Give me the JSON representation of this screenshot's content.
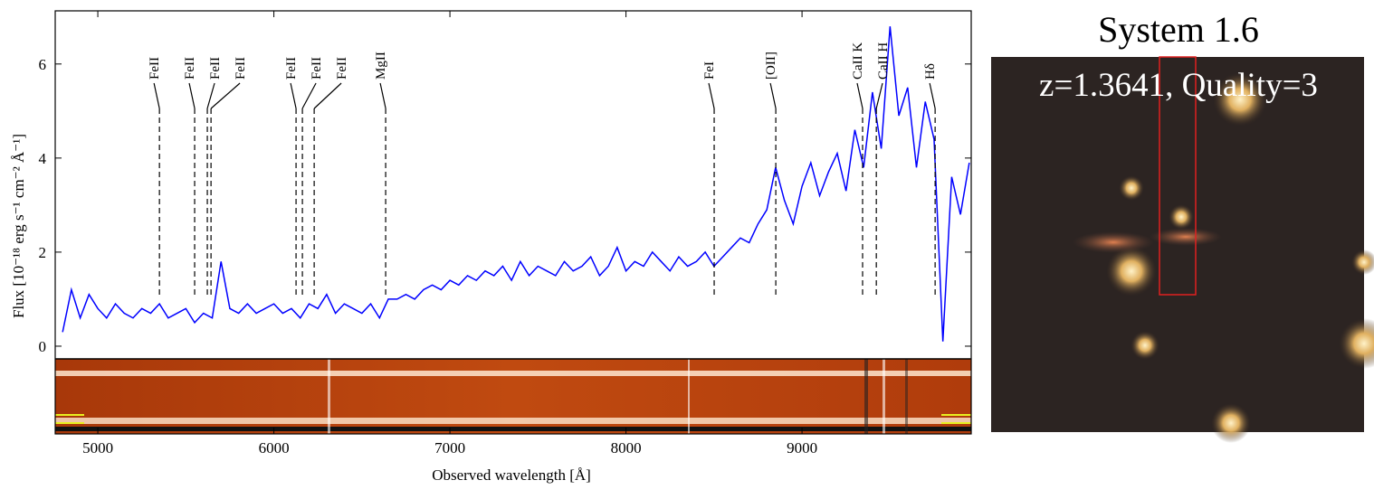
{
  "chart_data": {
    "type": "line",
    "x_label": "Observed wavelength [Å]",
    "y_label": "Flux [10⁻¹⁸ erg s⁻¹ cm⁻² Å⁻¹]",
    "color": "#0000ff",
    "xlim": [
      4758,
      9961
    ],
    "xticks": [
      5000,
      6000,
      7000,
      8000,
      9000
    ],
    "ylim": [
      -0.27,
      7.13
    ],
    "yticks": [
      0,
      2,
      4,
      6
    ],
    "x": [
      4800,
      4850,
      4900,
      4950,
      5000,
      5050,
      5100,
      5150,
      5200,
      5250,
      5300,
      5350,
      5400,
      5450,
      5500,
      5550,
      5600,
      5650,
      5700,
      5750,
      5800,
      5850,
      5900,
      5950,
      6000,
      6050,
      6100,
      6150,
      6200,
      6250,
      6300,
      6350,
      6400,
      6450,
      6500,
      6550,
      6600,
      6650,
      6700,
      6750,
      6800,
      6850,
      6900,
      6950,
      7000,
      7050,
      7100,
      7150,
      7200,
      7250,
      7300,
      7350,
      7400,
      7450,
      7500,
      7550,
      7600,
      7650,
      7700,
      7750,
      7800,
      7850,
      7900,
      7950,
      8000,
      8050,
      8100,
      8150,
      8200,
      8250,
      8300,
      8350,
      8400,
      8450,
      8500,
      8550,
      8600,
      8650,
      8700,
      8750,
      8800,
      8850,
      8900,
      8950,
      9000,
      9050,
      9100,
      9150,
      9200,
      9250,
      9300,
      9350,
      9400,
      9450,
      9500,
      9550,
      9600,
      9650,
      9700,
      9750,
      9800,
      9850,
      9900,
      9950
    ],
    "values": [
      0.3,
      1.2,
      0.6,
      1.1,
      0.8,
      0.6,
      0.9,
      0.7,
      0.6,
      0.8,
      0.7,
      0.9,
      0.6,
      0.7,
      0.8,
      0.5,
      0.7,
      0.6,
      1.8,
      0.8,
      0.7,
      0.9,
      0.7,
      0.8,
      0.9,
      0.7,
      0.8,
      0.6,
      0.9,
      0.8,
      1.1,
      0.7,
      0.9,
      0.8,
      0.7,
      0.9,
      0.6,
      1.0,
      1.0,
      1.1,
      1.0,
      1.2,
      1.3,
      1.2,
      1.4,
      1.3,
      1.5,
      1.4,
      1.6,
      1.5,
      1.7,
      1.4,
      1.8,
      1.5,
      1.7,
      1.6,
      1.5,
      1.8,
      1.6,
      1.7,
      1.9,
      1.5,
      1.7,
      2.1,
      1.6,
      1.8,
      1.7,
      2.0,
      1.8,
      1.6,
      1.9,
      1.7,
      1.8,
      2.0,
      1.7,
      1.9,
      2.1,
      2.3,
      2.2,
      2.6,
      2.9,
      3.8,
      3.1,
      2.6,
      3.4,
      3.9,
      3.2,
      3.7,
      4.1,
      3.3,
      4.6,
      3.8,
      5.4,
      4.2,
      6.8,
      4.9,
      5.5,
      3.8,
      5.2,
      4.4,
      0.1,
      3.6,
      2.8,
      3.9
    ],
    "annotations": [
      {
        "label": "FeII",
        "x": 5350
      },
      {
        "label": "FeII",
        "x": 5550
      },
      {
        "label": "FeII",
        "x": 5622
      },
      {
        "label": "FeII",
        "x": 5643
      },
      {
        "label": "FeII",
        "x": 6126
      },
      {
        "label": "FeII",
        "x": 6162
      },
      {
        "label": "FeII",
        "x": 6229
      },
      {
        "label": "MgII",
        "x": 6635
      },
      {
        "label": "FeI",
        "x": 8501
      },
      {
        "label": "[OII]",
        "x": 8851
      },
      {
        "label": "CaII K",
        "x": 9344
      },
      {
        "label": "CaII H",
        "x": 9422
      },
      {
        "label": "Hδ",
        "x": 9756
      }
    ]
  },
  "image_panel": {
    "title": "System 1.6",
    "caption": "z=1.3641, Quality=3"
  }
}
